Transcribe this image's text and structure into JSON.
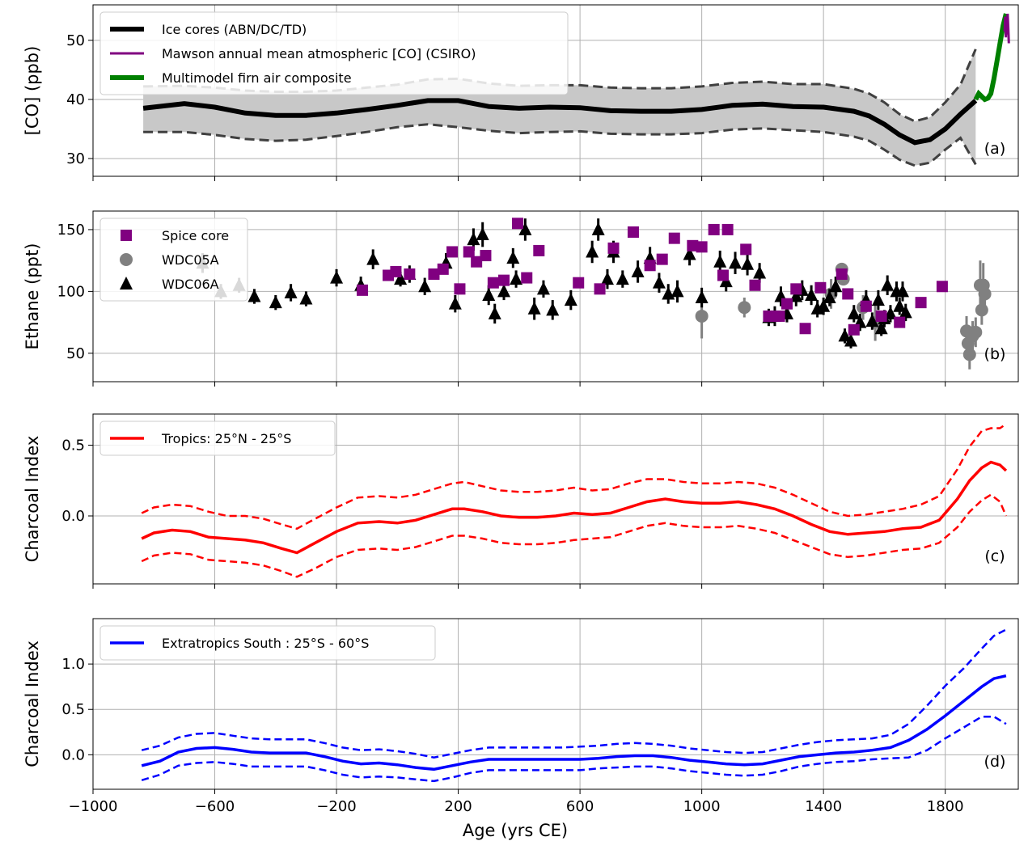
{
  "x_axis": {
    "label": "Age (yrs CE)",
    "range": [
      -1000,
      2040
    ],
    "ticks": [
      -1000,
      -600,
      -200,
      200,
      600,
      1000,
      1400,
      1800
    ],
    "tick_labels": [
      "−1000",
      "−600",
      "−200",
      "200",
      "600",
      "1000",
      "1400",
      "1800"
    ]
  },
  "chart_data": [
    {
      "type": "line",
      "panel_label": "(a)",
      "ylabel": "[CO] (ppb)",
      "ylim": [
        27,
        56
      ],
      "yticks": [
        30,
        40,
        50
      ],
      "grid": true,
      "legend_position": "top-left",
      "colors": {
        "ice": "#000000",
        "csiro": "#800080",
        "firn": "#008000",
        "band": "#c8c8c8",
        "bounds": "#404040"
      },
      "series": [
        {
          "name": "Ice cores (ABN/DC/TD)",
          "x": [
            -835,
            -700,
            -600,
            -500,
            -400,
            -300,
            -200,
            -100,
            0,
            100,
            200,
            300,
            400,
            500,
            600,
            700,
            800,
            900,
            1000,
            1100,
            1200,
            1300,
            1400,
            1500,
            1550,
            1600,
            1650,
            1700,
            1750,
            1800,
            1850,
            1900
          ],
          "y": [
            38.5,
            39.3,
            38.7,
            37.7,
            37.3,
            37.3,
            37.7,
            38.3,
            39.0,
            39.8,
            39.8,
            38.8,
            38.5,
            38.7,
            38.6,
            38.1,
            38.0,
            38.0,
            38.3,
            39.0,
            39.2,
            38.8,
            38.7,
            38.0,
            37.2,
            35.8,
            34.0,
            32.7,
            33.2,
            35.0,
            37.5,
            39.8
          ],
          "lower": [
            34.5,
            34.5,
            34.0,
            33.3,
            33.0,
            33.2,
            33.8,
            34.5,
            35.3,
            35.8,
            35.3,
            34.7,
            34.3,
            34.5,
            34.6,
            34.2,
            34.1,
            34.1,
            34.3,
            34.9,
            35.1,
            34.8,
            34.5,
            33.7,
            33.0,
            31.5,
            29.8,
            28.8,
            29.3,
            31.5,
            33.5,
            29.0
          ],
          "upper": [
            42.2,
            42.3,
            42.0,
            41.5,
            41.3,
            41.3,
            41.5,
            42.0,
            42.5,
            43.4,
            43.5,
            42.7,
            42.3,
            42.4,
            42.4,
            42.0,
            41.9,
            41.9,
            42.2,
            42.8,
            43.0,
            42.6,
            42.6,
            41.8,
            41.0,
            39.5,
            37.5,
            36.3,
            37.0,
            39.5,
            42.5,
            48.5
          ]
        },
        {
          "name": "Mawson annual mean atmospheric [CO] (CSIRO)",
          "x": [
            1995,
            1997,
            1999,
            2001,
            2003,
            2005,
            2007,
            2009
          ],
          "y": [
            51.5,
            54.0,
            50.5,
            53.0,
            51.0,
            54.5,
            52.0,
            49.5
          ]
        },
        {
          "name": "Multimodel firn air composite",
          "x": [
            1900,
            1910,
            1920,
            1930,
            1940,
            1950,
            1960,
            1970,
            1980,
            1990,
            2000
          ],
          "y": [
            40.0,
            41.0,
            40.5,
            40.0,
            40.2,
            41.0,
            43.5,
            46.5,
            49.5,
            52.5,
            54.5
          ]
        }
      ]
    },
    {
      "type": "scatter",
      "panel_label": "(b)",
      "ylabel": "Ethane (ppt)",
      "ylim": [
        27,
        165
      ],
      "yticks": [
        50,
        100,
        150
      ],
      "grid": true,
      "legend_position": "top-left",
      "colors": {
        "spice": "#800080",
        "wdc05a": "#808080",
        "wdc06a": "#000000"
      },
      "series": [
        {
          "name": "Spice core",
          "marker": "square",
          "x": [
            -115,
            -30,
            -5,
            40,
            120,
            150,
            180,
            205,
            235,
            260,
            290,
            315,
            350,
            395,
            425,
            465,
            595,
            665,
            710,
            775,
            830,
            870,
            910,
            970,
            1000,
            1040,
            1070,
            1085,
            1145,
            1175,
            1220,
            1255,
            1280,
            1310,
            1340,
            1390,
            1460,
            1480,
            1500,
            1540,
            1590,
            1650,
            1720,
            1790
          ],
          "y": [
            101,
            113,
            116,
            114,
            114,
            118,
            132,
            102,
            132,
            124,
            129,
            107,
            109,
            155,
            111,
            133,
            107,
            102,
            135,
            148,
            121,
            126,
            143,
            137,
            136,
            150,
            113,
            150,
            134,
            105,
            80,
            80,
            90,
            102,
            70,
            103,
            114,
            98,
            69,
            88,
            80,
            75,
            91,
            104
          ]
        },
        {
          "name": "WDC05A",
          "marker": "circle",
          "x": [
            1000,
            1140,
            1425,
            1460,
            1465,
            1530,
            1570,
            1870,
            1875,
            1880,
            1890,
            1900,
            1915,
            1920,
            1925,
            1930
          ],
          "y": [
            80,
            87,
            98,
            118,
            110,
            87,
            75,
            68,
            58,
            49,
            64,
            67,
            105,
            85,
            105,
            98
          ],
          "error": [
            18,
            8,
            12,
            5,
            5,
            10,
            15,
            12,
            12,
            12,
            12,
            12,
            20,
            12,
            18,
            12
          ]
        },
        {
          "name": "WDC06A",
          "marker": "triangle",
          "x": [
            -640,
            -580,
            -520,
            -470,
            -400,
            -350,
            -300,
            -200,
            -120,
            -80,
            10,
            40,
            90,
            160,
            190,
            250,
            280,
            300,
            320,
            350,
            380,
            390,
            420,
            450,
            480,
            510,
            570,
            640,
            660,
            690,
            710,
            740,
            790,
            830,
            860,
            890,
            920,
            960,
            1000,
            1060,
            1080,
            1110,
            1150,
            1190,
            1220,
            1240,
            1260,
            1280,
            1310,
            1330,
            1360,
            1380,
            1400,
            1420,
            1440,
            1470,
            1490,
            1500,
            1520,
            1540,
            1560,
            1580,
            1590,
            1600,
            1610,
            1620,
            1640,
            1650,
            1660,
            1670
          ],
          "y": [
            123,
            100,
            105,
            96,
            91,
            99,
            94,
            111,
            105,
            126,
            110,
            114,
            104,
            123,
            90,
            142,
            146,
            97,
            82,
            100,
            127,
            110,
            150,
            86,
            102,
            85,
            93,
            132,
            150,
            110,
            132,
            110,
            116,
            127,
            107,
            98,
            100,
            130,
            95,
            124,
            108,
            123,
            122,
            115,
            79,
            80,
            96,
            82,
            96,
            101,
            97,
            86,
            88,
            95,
            104,
            64,
            60,
            82,
            75,
            93,
            76,
            93,
            70,
            78,
            105,
            82,
            100,
            88,
            100,
            83
          ],
          "error": [
            8,
            6,
            6,
            6,
            6,
            7,
            6,
            7,
            7,
            8,
            6,
            7,
            7,
            8,
            7,
            9,
            10,
            8,
            8,
            7,
            8,
            7,
            9,
            9,
            7,
            8,
            8,
            9,
            9,
            8,
            9,
            7,
            9,
            9,
            8,
            8,
            9,
            9,
            8,
            9,
            8,
            9,
            9,
            8,
            7,
            8,
            8,
            7,
            8,
            8,
            8,
            7,
            7,
            7,
            8,
            6,
            6,
            7,
            7,
            8,
            7,
            8,
            6,
            7,
            8,
            7,
            8,
            7,
            8,
            7
          ]
        }
      ]
    },
    {
      "type": "line",
      "panel_label": "(c)",
      "ylabel": "Charcoal Index",
      "ylim": [
        -0.48,
        0.72
      ],
      "yticks": [
        0.0,
        0.5
      ],
      "grid": true,
      "legend_position": "top-left",
      "colors": {
        "line": "#ff0000"
      },
      "series": [
        {
          "name": "Tropics: 25°N - 25°S",
          "x": [
            -840,
            -800,
            -740,
            -680,
            -620,
            -560,
            -500,
            -440,
            -380,
            -330,
            -270,
            -200,
            -130,
            -60,
            0,
            60,
            120,
            180,
            220,
            280,
            340,
            400,
            460,
            520,
            580,
            640,
            700,
            760,
            820,
            880,
            940,
            1000,
            1060,
            1120,
            1180,
            1240,
            1300,
            1360,
            1420,
            1480,
            1540,
            1600,
            1660,
            1720,
            1780,
            1840,
            1880,
            1920,
            1950,
            1980,
            2000
          ],
          "y": [
            -0.16,
            -0.12,
            -0.1,
            -0.11,
            -0.15,
            -0.16,
            -0.17,
            -0.19,
            -0.23,
            -0.26,
            -0.19,
            -0.11,
            -0.05,
            -0.04,
            -0.05,
            -0.03,
            0.01,
            0.05,
            0.05,
            0.03,
            0.0,
            -0.01,
            -0.01,
            0.0,
            0.02,
            0.01,
            0.02,
            0.06,
            0.1,
            0.12,
            0.1,
            0.09,
            0.09,
            0.1,
            0.08,
            0.05,
            0.0,
            -0.06,
            -0.11,
            -0.13,
            -0.12,
            -0.11,
            -0.09,
            -0.08,
            -0.03,
            0.12,
            0.25,
            0.34,
            0.38,
            0.36,
            0.32
          ],
          "lower": [
            -0.32,
            -0.28,
            -0.26,
            -0.27,
            -0.31,
            -0.32,
            -0.33,
            -0.35,
            -0.39,
            -0.43,
            -0.37,
            -0.29,
            -0.24,
            -0.23,
            -0.24,
            -0.22,
            -0.18,
            -0.14,
            -0.14,
            -0.16,
            -0.19,
            -0.2,
            -0.2,
            -0.19,
            -0.17,
            -0.16,
            -0.15,
            -0.11,
            -0.07,
            -0.05,
            -0.07,
            -0.08,
            -0.08,
            -0.07,
            -0.09,
            -0.12,
            -0.17,
            -0.22,
            -0.27,
            -0.29,
            -0.28,
            -0.26,
            -0.24,
            -0.23,
            -0.19,
            -0.08,
            0.03,
            0.11,
            0.15,
            0.1,
            0.0
          ],
          "upper": [
            0.02,
            0.06,
            0.08,
            0.07,
            0.03,
            0.0,
            0.0,
            -0.02,
            -0.06,
            -0.09,
            -0.02,
            0.06,
            0.13,
            0.14,
            0.13,
            0.15,
            0.19,
            0.23,
            0.24,
            0.21,
            0.18,
            0.17,
            0.17,
            0.18,
            0.2,
            0.18,
            0.19,
            0.23,
            0.26,
            0.26,
            0.24,
            0.23,
            0.23,
            0.24,
            0.23,
            0.2,
            0.15,
            0.09,
            0.03,
            0.0,
            0.01,
            0.03,
            0.05,
            0.08,
            0.14,
            0.33,
            0.49,
            0.6,
            0.62,
            0.62,
            0.65
          ]
        }
      ]
    },
    {
      "type": "line",
      "panel_label": "(d)",
      "ylabel": "Charcoal Index",
      "ylim": [
        -0.38,
        1.5
      ],
      "yticks": [
        0.0,
        0.5,
        1.0
      ],
      "grid": true,
      "legend_position": "top-left",
      "colors": {
        "line": "#0000ff"
      },
      "series": [
        {
          "name": "Extratropics South : 25°S - 60°S",
          "x": [
            -840,
            -780,
            -720,
            -660,
            -600,
            -540,
            -480,
            -420,
            -360,
            -300,
            -240,
            -180,
            -120,
            -60,
            0,
            60,
            120,
            180,
            240,
            300,
            360,
            420,
            480,
            540,
            600,
            660,
            720,
            780,
            840,
            900,
            960,
            1020,
            1080,
            1140,
            1200,
            1260,
            1320,
            1380,
            1440,
            1500,
            1560,
            1620,
            1680,
            1740,
            1800,
            1860,
            1920,
            1960,
            2000
          ],
          "y": [
            -0.12,
            -0.07,
            0.03,
            0.07,
            0.08,
            0.06,
            0.03,
            0.02,
            0.02,
            0.02,
            -0.02,
            -0.07,
            -0.1,
            -0.09,
            -0.11,
            -0.14,
            -0.16,
            -0.12,
            -0.08,
            -0.05,
            -0.05,
            -0.05,
            -0.05,
            -0.05,
            -0.05,
            -0.04,
            -0.02,
            -0.01,
            -0.01,
            -0.03,
            -0.06,
            -0.08,
            -0.1,
            -0.11,
            -0.1,
            -0.06,
            -0.02,
            0.0,
            0.02,
            0.03,
            0.05,
            0.08,
            0.16,
            0.28,
            0.43,
            0.59,
            0.75,
            0.84,
            0.87
          ],
          "lower": [
            -0.28,
            -0.22,
            -0.12,
            -0.09,
            -0.08,
            -0.1,
            -0.13,
            -0.13,
            -0.13,
            -0.13,
            -0.17,
            -0.22,
            -0.25,
            -0.24,
            -0.25,
            -0.27,
            -0.29,
            -0.25,
            -0.2,
            -0.17,
            -0.17,
            -0.17,
            -0.17,
            -0.17,
            -0.17,
            -0.15,
            -0.14,
            -0.13,
            -0.13,
            -0.15,
            -0.18,
            -0.2,
            -0.22,
            -0.23,
            -0.22,
            -0.18,
            -0.13,
            -0.1,
            -0.08,
            -0.07,
            -0.05,
            -0.04,
            -0.03,
            0.05,
            0.18,
            0.3,
            0.42,
            0.42,
            0.34
          ],
          "upper": [
            0.05,
            0.1,
            0.19,
            0.23,
            0.24,
            0.21,
            0.18,
            0.17,
            0.17,
            0.17,
            0.13,
            0.08,
            0.05,
            0.06,
            0.04,
            0.01,
            -0.03,
            0.01,
            0.05,
            0.08,
            0.08,
            0.08,
            0.08,
            0.08,
            0.09,
            0.1,
            0.12,
            0.13,
            0.12,
            0.1,
            0.07,
            0.05,
            0.03,
            0.02,
            0.03,
            0.07,
            0.11,
            0.14,
            0.16,
            0.17,
            0.18,
            0.22,
            0.34,
            0.54,
            0.76,
            0.95,
            1.17,
            1.31,
            1.38
          ]
        }
      ]
    }
  ]
}
